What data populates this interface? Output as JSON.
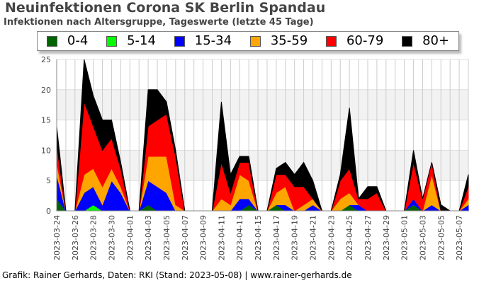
{
  "chart_data": {
    "type": "area",
    "stacked": true,
    "title": "Neuinfektionen Corona SK Berlin Spandau",
    "subtitle": "Infektionen nach Altersgruppe, Tageswerte (letzte 45 Tage)",
    "ylim": [
      0,
      25
    ],
    "yticks": [
      0,
      5,
      10,
      15,
      20,
      25
    ],
    "grid": true,
    "legend_position": "top",
    "x": [
      "2023-03-24",
      "2023-03-25",
      "2023-03-26",
      "2023-03-27",
      "2023-03-28",
      "2023-03-29",
      "2023-03-30",
      "2023-03-31",
      "2023-04-01",
      "2023-04-02",
      "2023-04-03",
      "2023-04-04",
      "2023-04-05",
      "2023-04-06",
      "2023-04-07",
      "2023-04-08",
      "2023-04-09",
      "2023-04-10",
      "2023-04-11",
      "2023-04-12",
      "2023-04-13",
      "2023-04-14",
      "2023-04-15",
      "2023-04-16",
      "2023-04-17",
      "2023-04-18",
      "2023-04-19",
      "2023-04-20",
      "2023-04-21",
      "2023-04-22",
      "2023-04-23",
      "2023-04-24",
      "2023-04-25",
      "2023-04-26",
      "2023-04-27",
      "2023-04-28",
      "2023-04-29",
      "2023-04-30",
      "2023-05-01",
      "2023-05-02",
      "2023-05-03",
      "2023-05-04",
      "2023-05-05",
      "2023-05-06",
      "2023-05-07",
      "2023-05-08"
    ],
    "xtick_labels": [
      "2023-03-24",
      "2023-03-26",
      "2023-03-28",
      "2023-03-30",
      "2023-04-01",
      "2023-04-03",
      "2023-04-05",
      "2023-04-07",
      "2023-04-09",
      "2023-04-11",
      "2023-04-13",
      "2023-04-15",
      "2023-04-17",
      "2023-04-19",
      "2023-04-21",
      "2023-04-23",
      "2023-04-25",
      "2023-04-27",
      "2023-04-29",
      "2023-05-01",
      "2023-05-03",
      "2023-05-05",
      "2023-05-07"
    ],
    "series": [
      {
        "name": "0-4",
        "color": "#006400",
        "values": [
          2,
          0,
          0,
          0,
          0,
          0,
          0,
          0,
          0,
          0,
          1,
          0,
          0,
          0,
          0,
          0,
          0,
          0,
          0,
          0,
          0,
          1,
          0,
          0,
          1,
          0,
          0,
          0,
          0,
          0,
          0,
          0,
          1,
          0,
          0,
          0,
          0,
          0,
          0,
          1,
          0,
          0,
          0,
          0,
          0,
          0
        ]
      },
      {
        "name": "5-14",
        "color": "#00ff00",
        "values": [
          0,
          0,
          0,
          0,
          1,
          0,
          0,
          0,
          0,
          0,
          0,
          0,
          0,
          0,
          0,
          0,
          0,
          0,
          0,
          0,
          0,
          0,
          0,
          0,
          0,
          0,
          0,
          0,
          0,
          0,
          0,
          0,
          0,
          0,
          0,
          0,
          0,
          0,
          0,
          0,
          0,
          0,
          0,
          0,
          0,
          0
        ]
      },
      {
        "name": "15-34",
        "color": "#0000ff",
        "values": [
          4,
          0,
          0,
          3,
          3,
          1,
          5,
          3,
          0,
          0,
          4,
          4,
          3,
          0,
          0,
          0,
          0,
          0,
          0,
          0,
          2,
          1,
          0,
          0,
          0,
          1,
          0,
          0,
          1,
          0,
          0,
          0,
          0,
          1,
          0,
          0,
          0,
          0,
          0,
          1,
          0,
          1,
          0,
          0,
          0,
          1
        ]
      },
      {
        "name": "35-59",
        "color": "#ffa500",
        "values": [
          2,
          0,
          0,
          3,
          3,
          3,
          2,
          1,
          0,
          0,
          4,
          5,
          6,
          1,
          0,
          0,
          0,
          0,
          2,
          1,
          4,
          3,
          0,
          0,
          2,
          3,
          0,
          1,
          1,
          0,
          0,
          2,
          2,
          0,
          0,
          0,
          0,
          0,
          0,
          0,
          0,
          5,
          0,
          0,
          0,
          1
        ]
      },
      {
        "name": "60-79",
        "color": "#ff0000",
        "values": [
          3,
          0,
          0,
          12,
          7,
          6,
          5,
          3,
          0,
          0,
          5,
          6,
          7,
          8,
          0,
          0,
          0,
          0,
          6,
          2,
          2,
          3,
          0,
          0,
          3,
          2,
          4,
          3,
          0,
          0,
          0,
          3,
          4,
          1,
          2,
          3,
          0,
          0,
          0,
          6,
          2,
          2,
          0,
          0,
          0,
          2
        ]
      },
      {
        "name": "80+",
        "color": "#000000",
        "values": [
          3,
          0,
          0,
          7,
          5,
          5,
          3,
          1,
          0,
          0,
          6,
          5,
          2,
          1,
          0,
          0,
          0,
          0,
          10,
          3,
          1,
          1,
          0,
          0,
          1,
          2,
          2,
          4,
          3,
          0,
          0,
          1,
          10,
          0,
          2,
          1,
          0,
          0,
          0,
          2,
          0,
          0,
          1,
          0,
          0,
          2
        ]
      }
    ],
    "band_color": "#f2f2f2",
    "footer": "Grafik: Rainer Gerhards, Daten: RKI (Stand: 2023-05-08) | www.rainer-gerhards.de"
  }
}
